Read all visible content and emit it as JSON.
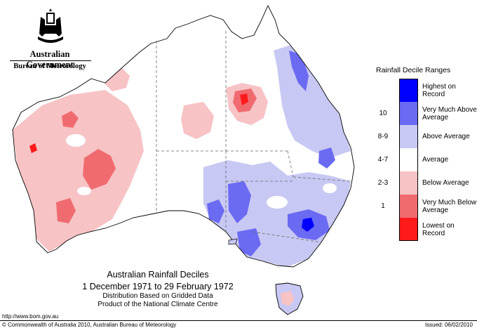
{
  "header": {
    "government": "Australian Government",
    "bureau": "Bureau of Meteorology",
    "crest_icon": "coat-of-arms-icon"
  },
  "legend": {
    "title": "Rainfall Decile Ranges",
    "items": [
      {
        "range": "",
        "label": "Highest on Record",
        "color": "#0000ff"
      },
      {
        "range": "10",
        "label": "Very Much Above Average",
        "color": "#6a6af2"
      },
      {
        "range": "8-9",
        "label": "Above Average",
        "color": "#c8c8f4"
      },
      {
        "range": "4-7",
        "label": "Average",
        "color": "#ffffff"
      },
      {
        "range": "2-3",
        "label": "Below Average",
        "color": "#f7c3c5"
      },
      {
        "range": "1",
        "label": "Very Much Below Average",
        "color": "#f06b6f"
      },
      {
        "range": "",
        "label": "Lowest on Record",
        "color": "#ff1a1a"
      }
    ]
  },
  "map": {
    "title": "Australian Rainfall Deciles",
    "period": "1 December 1971 to 29 February 1972",
    "subtitle1": "Distribution Based on Gridded Data",
    "subtitle2": "Product of the National Climate Centre"
  },
  "footer": {
    "url": "http://www.bom.gov.au",
    "copyright": "© Commonwealth of Australia 2010, Australian Bureau of Meteorology",
    "issued": "Issued: 06/02/2010"
  }
}
